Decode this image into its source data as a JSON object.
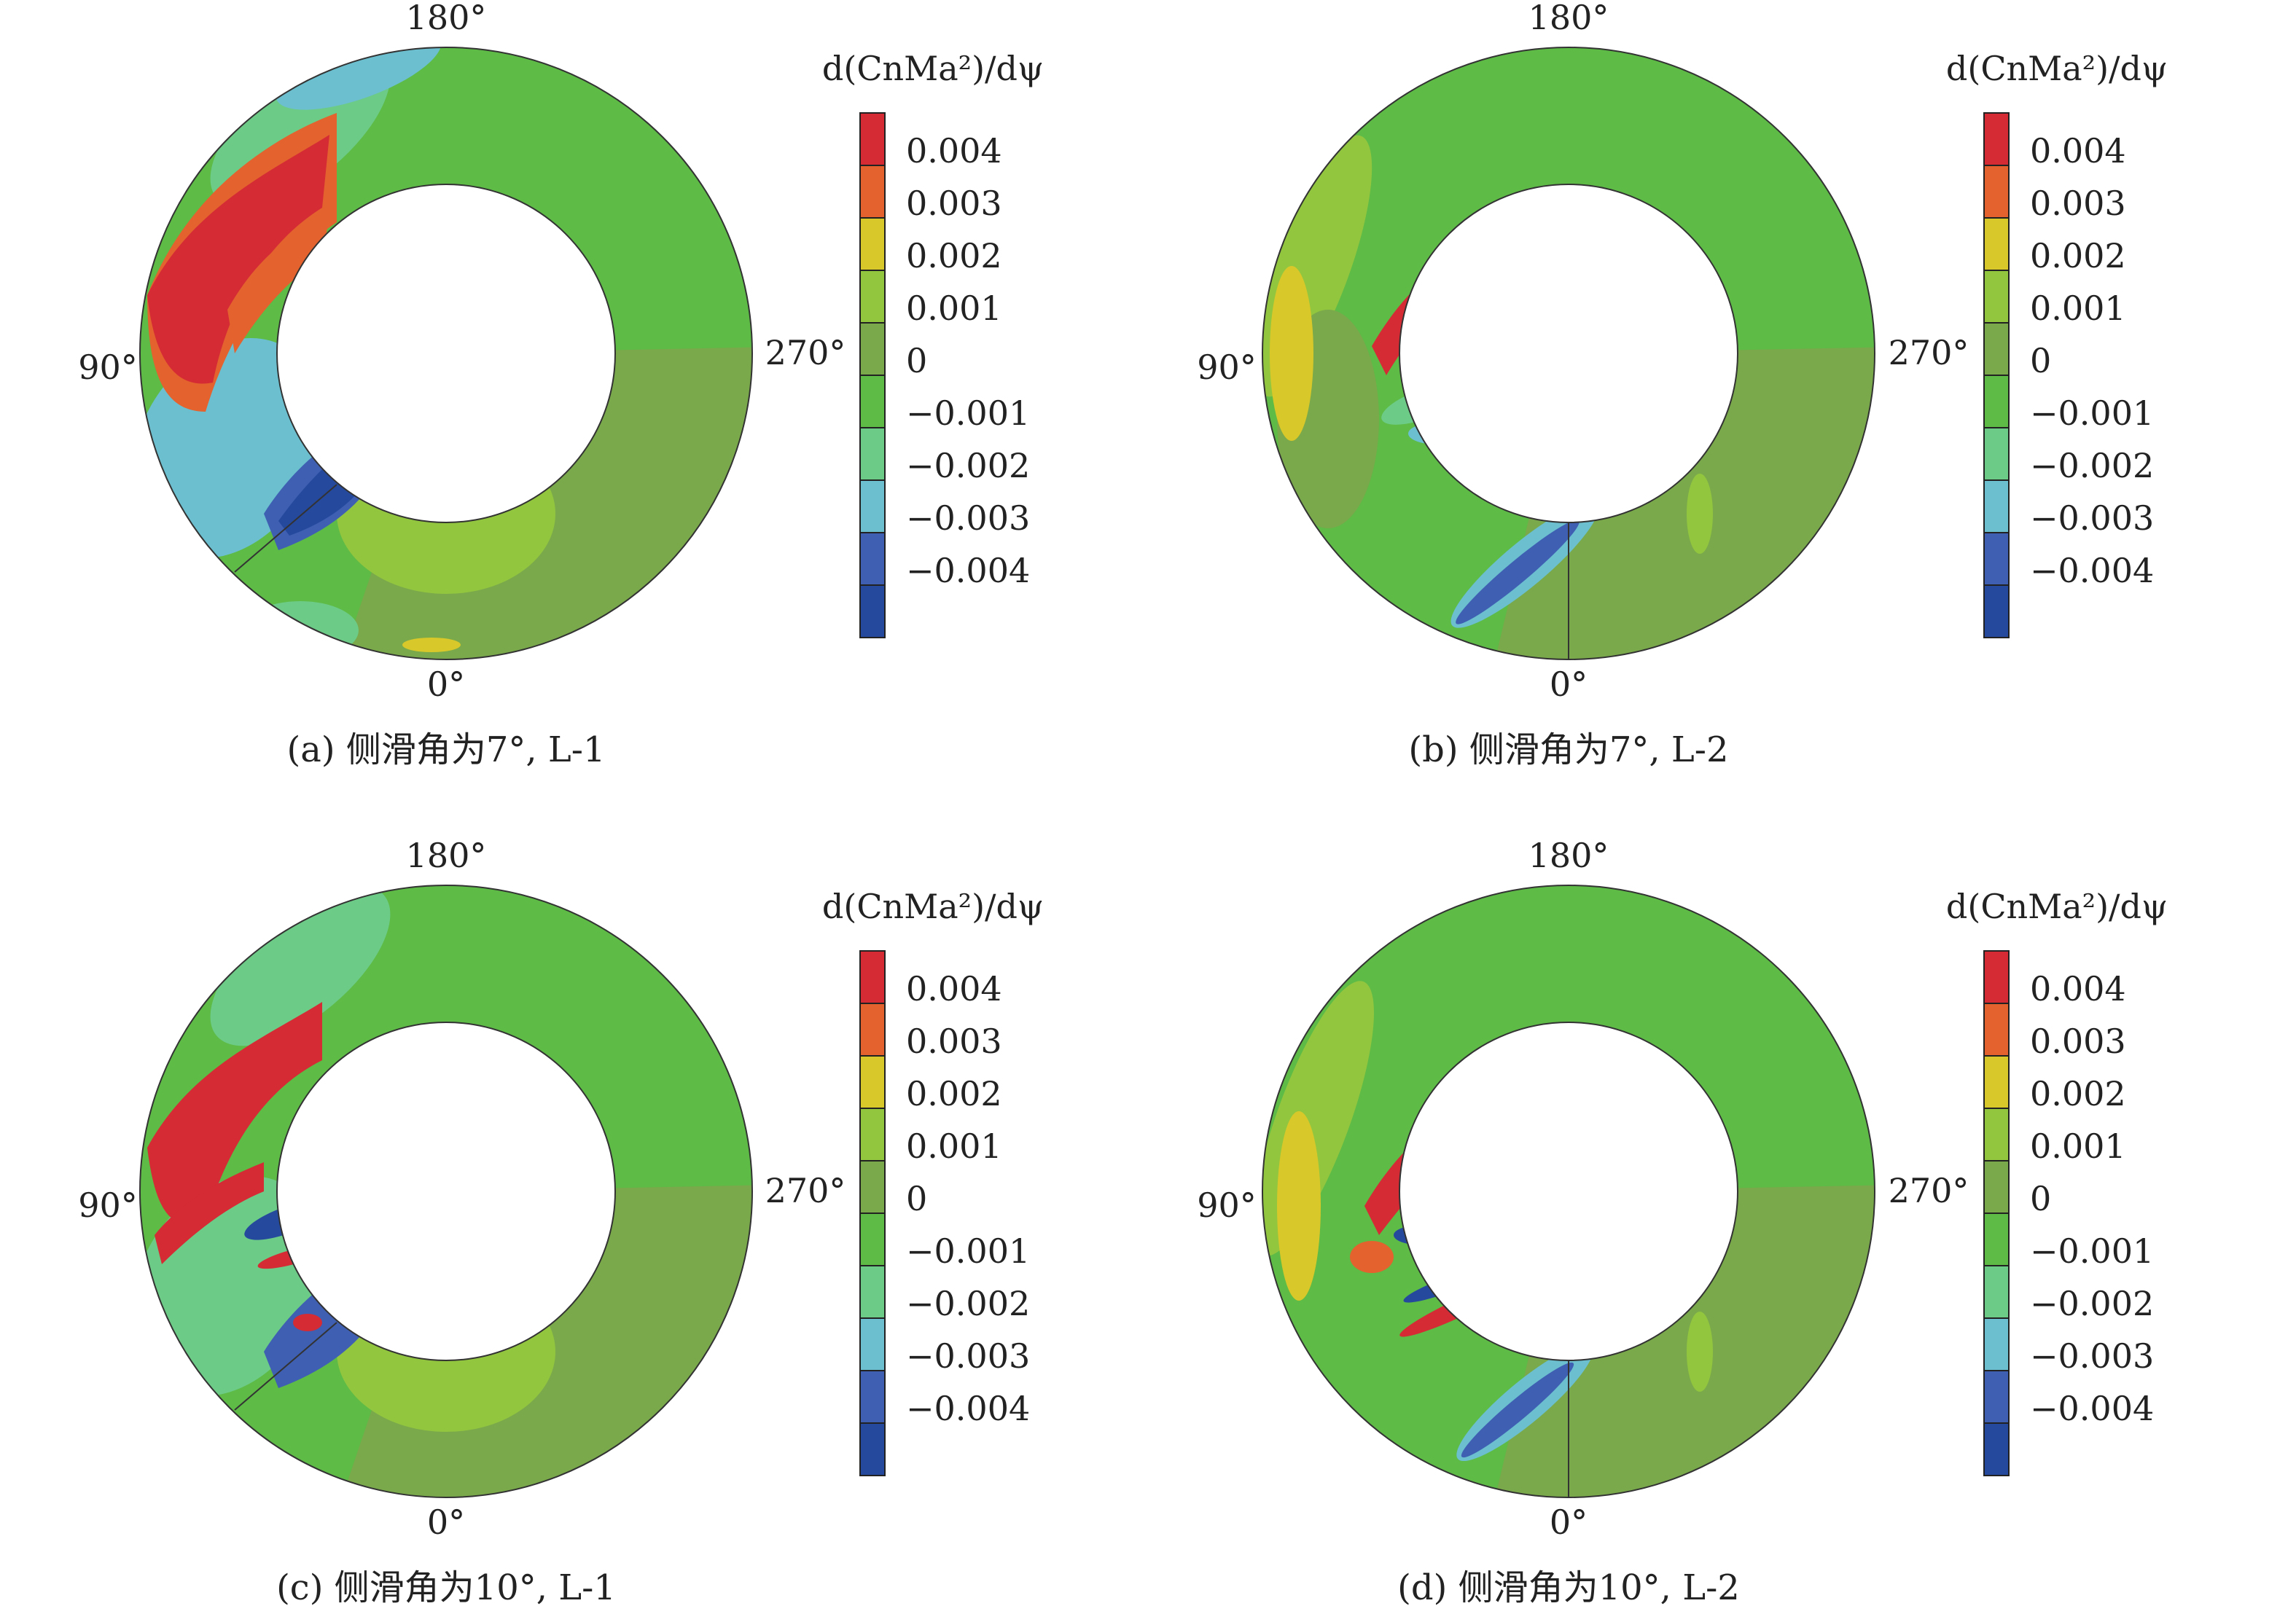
{
  "angle_labels": {
    "top": "180°",
    "left": "90°",
    "right": "270°",
    "bottom": "0°"
  },
  "colorbar_title": "d(CnMa²)/dψ",
  "colorbar_ticks": [
    "0.004",
    "0.003",
    "0.002",
    "0.001",
    "0",
    "−0.001",
    "−0.002",
    "−0.003",
    "−0.004"
  ],
  "colorbar_colors": [
    "#d42b35",
    "#e3622e",
    "#d8c829",
    "#92c63f",
    "#79a94a",
    "#5dbb46",
    "#6ccb86",
    "#6bbfcf",
    "#3e5fb2",
    "#25499c"
  ],
  "panels": [
    {
      "caption": "(a) 侧滑角为7°, L-1",
      "variant": "a"
    },
    {
      "caption": "(b) 侧滑角为7°, L-2",
      "variant": "b"
    },
    {
      "caption": "(c) 侧滑角为10°, L-1",
      "variant": "c"
    },
    {
      "caption": "(d) 侧滑角为10°, L-2",
      "variant": "d"
    }
  ],
  "chart_data": {
    "type": "heatmap",
    "description_values": "polar contour maps of d(CnMa²)/dψ over an annular domain; azimuth labels 0°, 90°, 180°, 270°",
    "color_levels": [
      0.004,
      0.003,
      0.002,
      0.001,
      0,
      -0.001,
      -0.002,
      -0.003,
      -0.004
    ],
    "color_range": [
      -0.004,
      0.004
    ],
    "subplots": [
      {
        "caption": "(a) 侧滑角为7°, L-1"
      },
      {
        "caption": "(b) 侧滑角为7°, L-2"
      },
      {
        "caption": "(c) 侧滑角为10°, L-1"
      },
      {
        "caption": "(d) 侧滑角为10°, L-2"
      }
    ]
  }
}
